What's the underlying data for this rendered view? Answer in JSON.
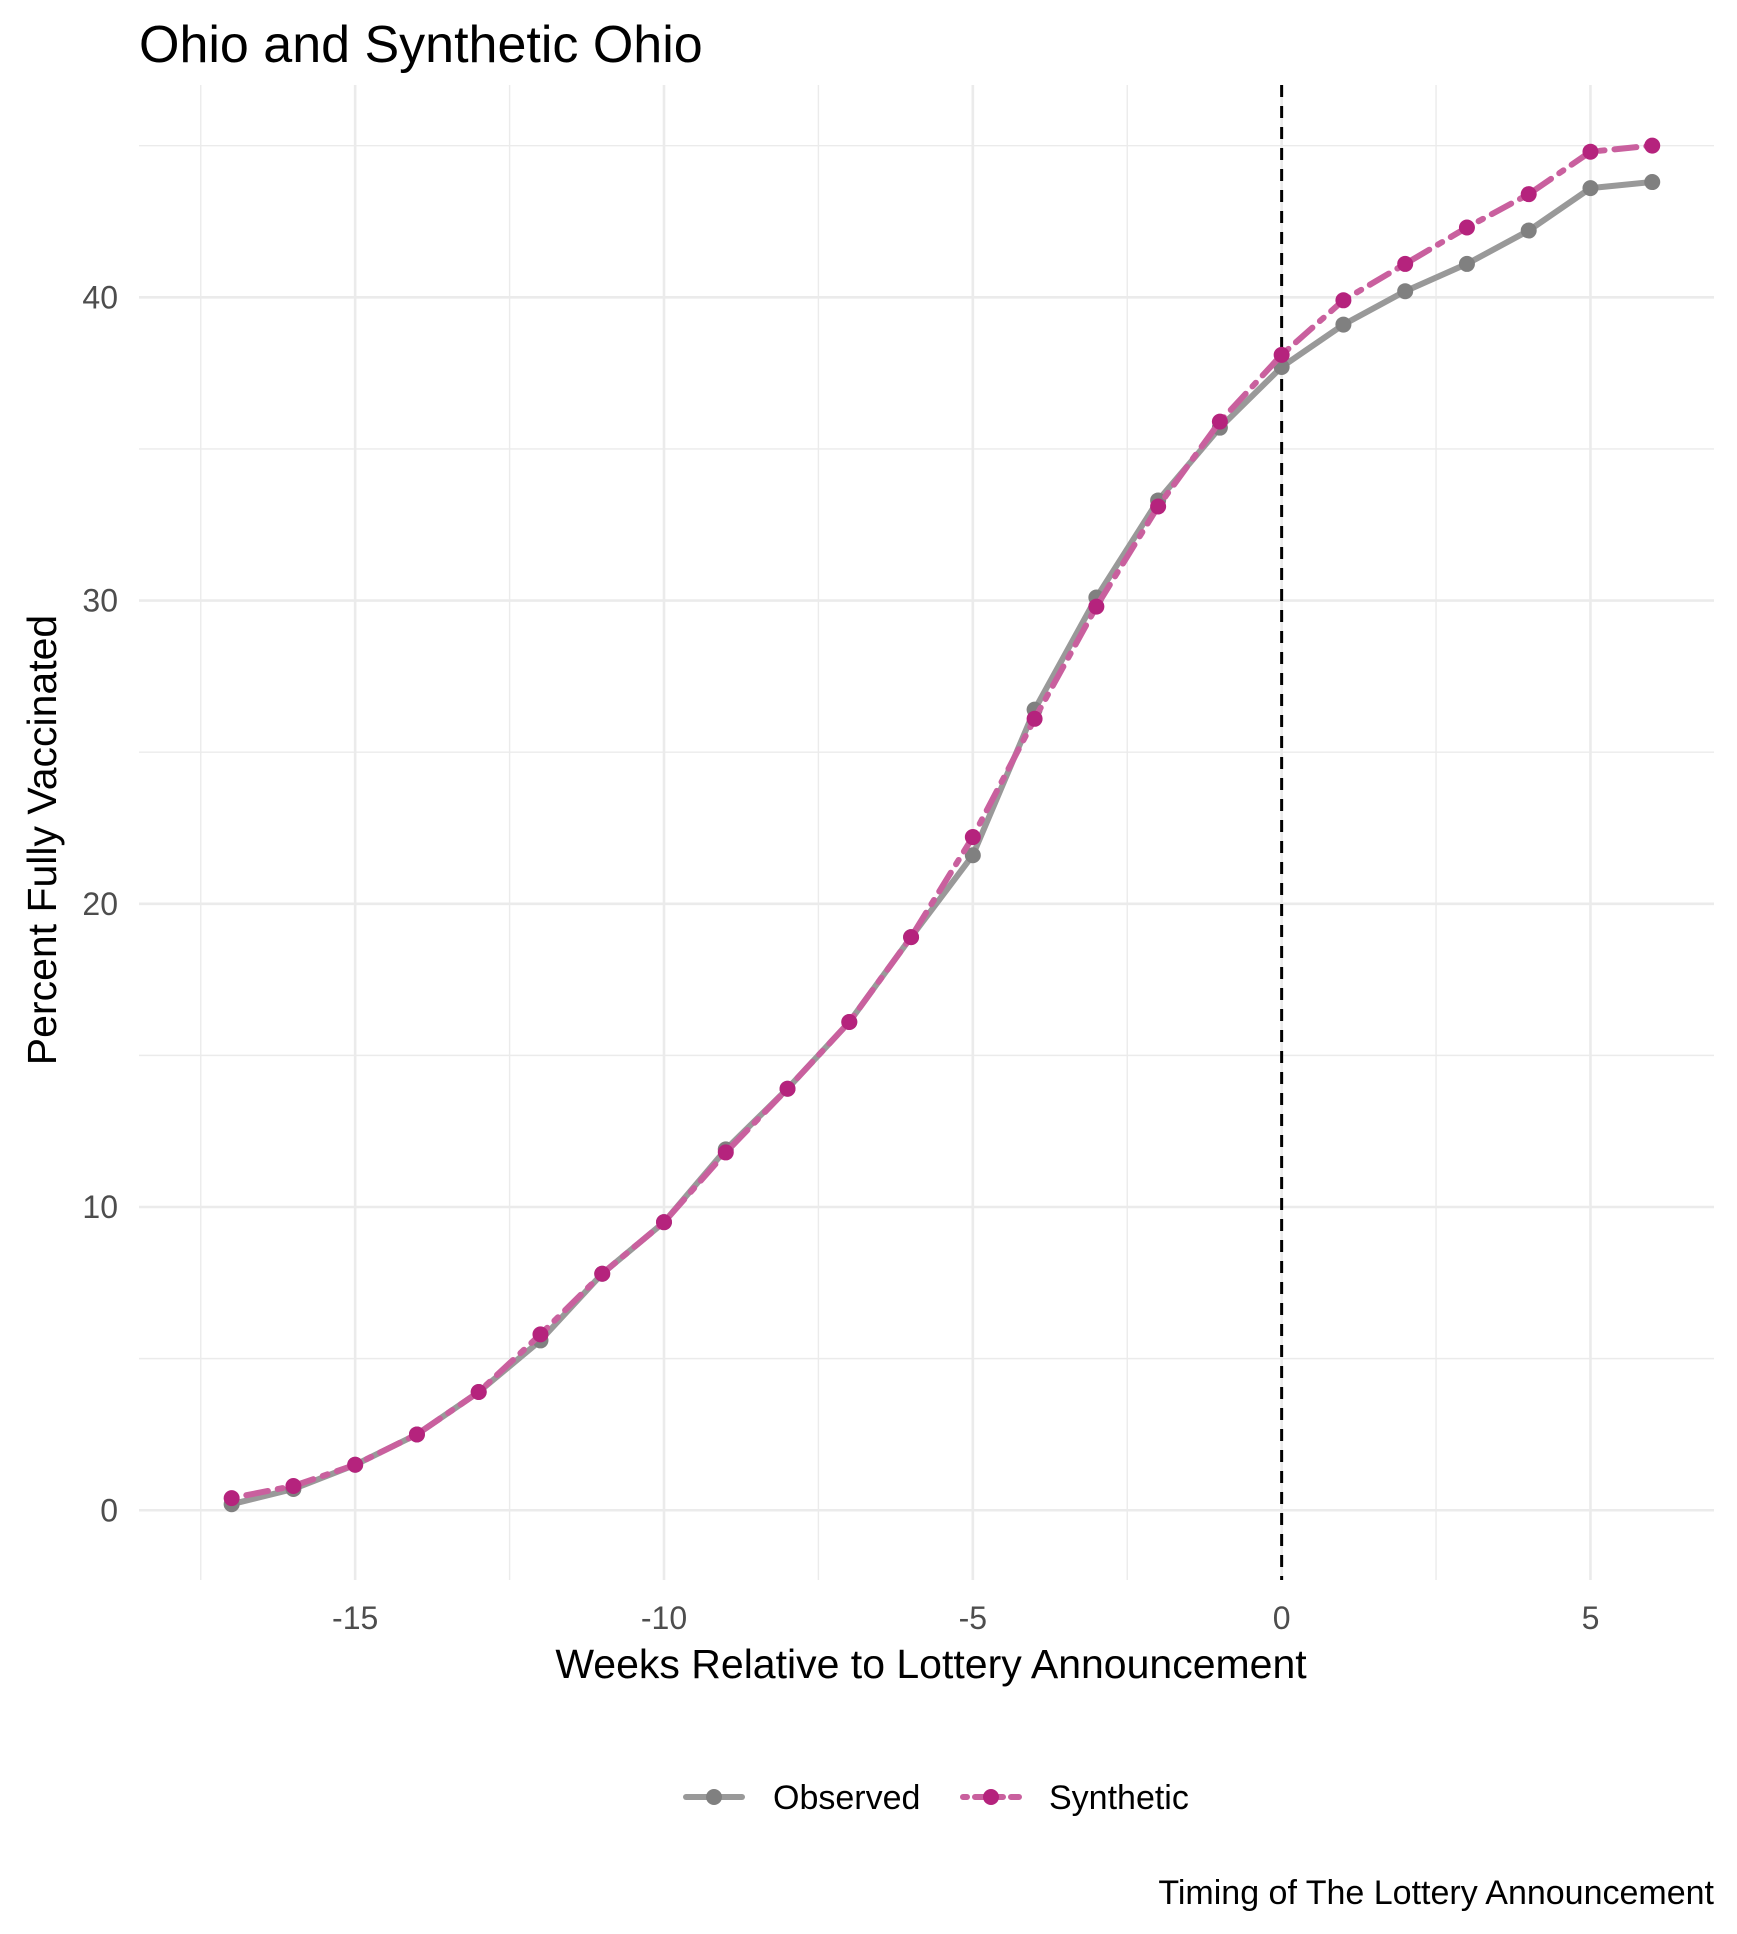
{
  "chart_data": {
    "type": "line",
    "title": "Ohio and Synthetic Ohio",
    "xlabel": "Weeks Relative to Lottery Announcement",
    "ylabel": "Percent Fully Vaccinated",
    "caption": "Timing of The Lottery Announcement",
    "xlim": [
      -18.5,
      7.0
    ],
    "ylim": [
      -2.3,
      47.0
    ],
    "x_ticks": [
      -15,
      -10,
      -5,
      0,
      5
    ],
    "y_ticks": [
      0,
      10,
      20,
      30,
      40
    ],
    "grid": true,
    "legend_position": "bottom",
    "vline": {
      "x": 0,
      "style": "dashed",
      "color": "#000000"
    },
    "x": [
      -17,
      -16,
      -15,
      -14,
      -13,
      -12,
      -11,
      -10,
      -9,
      -8,
      -7,
      -6,
      -5,
      -4,
      -3,
      -2,
      -1,
      0,
      1,
      2,
      3,
      4,
      5,
      6
    ],
    "series": [
      {
        "name": "Observed",
        "color": "#999999",
        "marker_color": "#808080",
        "line_style": "solid",
        "values": [
          0.2,
          0.7,
          1.5,
          2.5,
          3.9,
          5.6,
          7.8,
          9.5,
          11.9,
          13.9,
          16.1,
          18.9,
          21.6,
          26.4,
          30.1,
          33.3,
          35.7,
          37.7,
          39.1,
          40.2,
          41.1,
          42.2,
          43.6,
          43.8
        ]
      },
      {
        "name": "Synthetic",
        "color": "#C9609E",
        "marker_color": "#B5237D",
        "line_style": "dotdash",
        "values": [
          0.4,
          0.8,
          1.5,
          2.5,
          3.9,
          5.8,
          7.8,
          9.5,
          11.8,
          13.9,
          16.1,
          18.9,
          22.2,
          26.1,
          29.8,
          33.1,
          35.9,
          38.1,
          39.9,
          41.1,
          42.3,
          43.4,
          44.8,
          45.0
        ]
      }
    ]
  }
}
